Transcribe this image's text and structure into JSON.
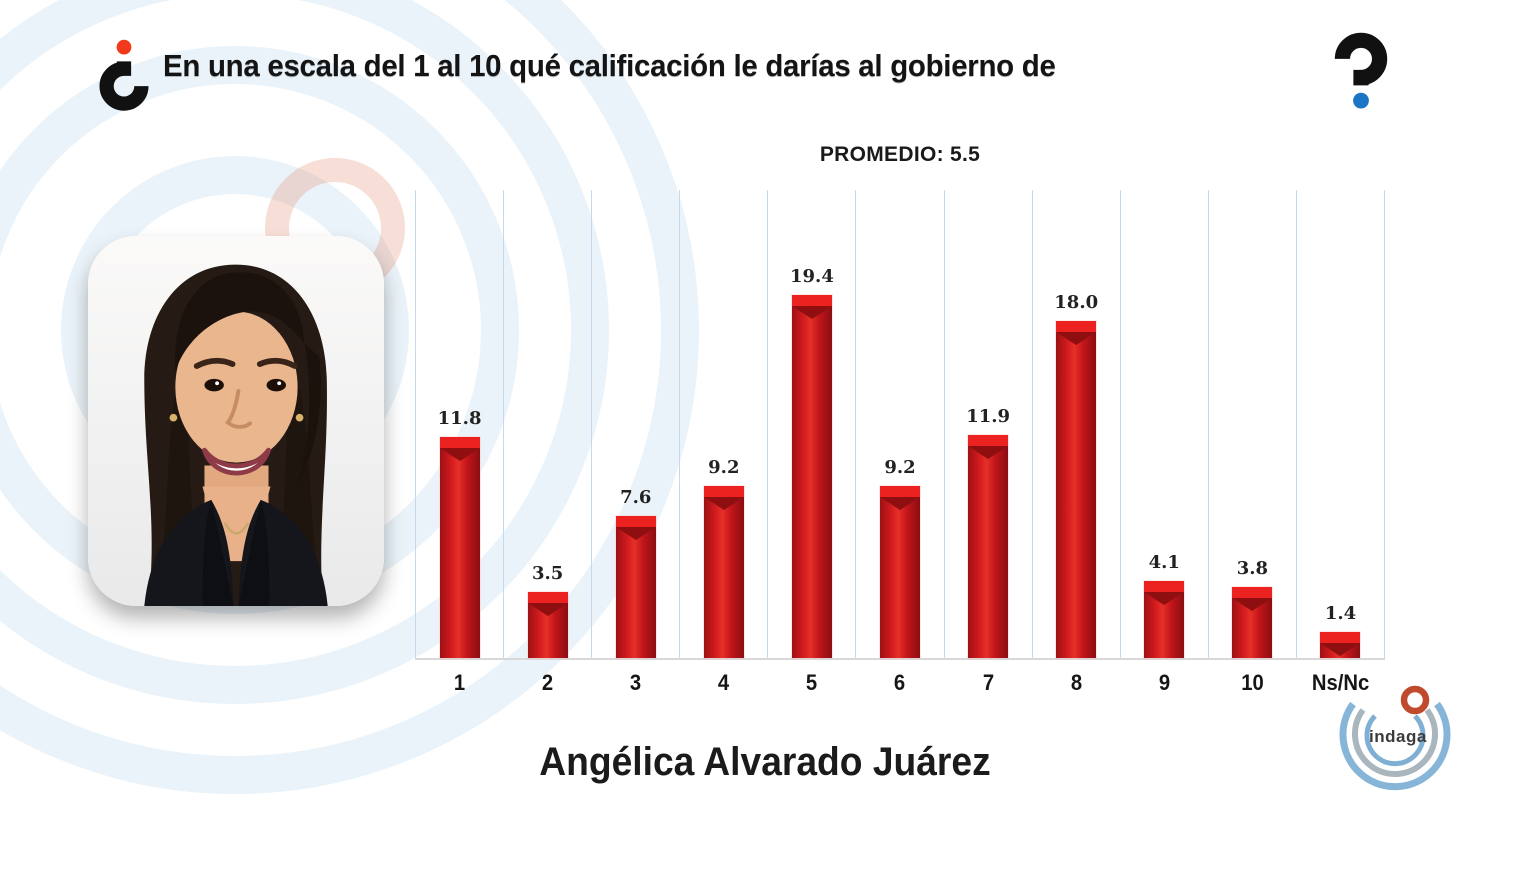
{
  "slide": {
    "header": {
      "title": "En una escala del 1 al 10 qué calificación le darías al gobierno de",
      "left_icon": "inverted-question-mark-icon",
      "right_icon": "question-mark-icon"
    },
    "average_label": "PROMEDIO: 5.5",
    "candidate": {
      "name": "Angélica Alvarado Juárez",
      "photo": "portrait-woman-dark-hair-black-blazer"
    },
    "logo": {
      "text": "indaga"
    }
  },
  "chart_data": {
    "type": "bar",
    "title": "PROMEDIO: 5.5",
    "average": 5.5,
    "categories": [
      "1",
      "2",
      "3",
      "4",
      "5",
      "6",
      "7",
      "8",
      "9",
      "10",
      "Ns/Nc"
    ],
    "values": [
      11.8,
      3.5,
      7.6,
      9.2,
      19.4,
      9.2,
      11.9,
      18.0,
      4.1,
      3.8,
      1.4
    ],
    "value_labels": [
      "11.8",
      "3.5",
      "7.6",
      "9.2",
      "19.4",
      "9.2",
      "11.9",
      "18.0",
      "4.1",
      "3.8",
      "1.4"
    ],
    "xlabel": "Angélica Alvarado Juárez",
    "ylim": [
      0,
      25
    ],
    "grid": "vertical-only",
    "legend": "none"
  },
  "colors": {
    "bar": "#c00000",
    "bar_cap": "#ec2220",
    "gridline": "#c5d9ec",
    "baseline": "#d8d8d8",
    "question_dot_left": "#f2391c",
    "question_dot_right": "#1b74c4",
    "question_glyph": "#111111",
    "watermark_blue": "#7eb2d9",
    "watermark_red": "#e2886f",
    "logo_blue_outer": "#86b5d8",
    "logo_blue_inner": "#7fb0d3",
    "logo_gray_arc": "#a9b6bd",
    "logo_red_ring": "#bf4a2d",
    "logo_text": "#3b3b3b"
  }
}
